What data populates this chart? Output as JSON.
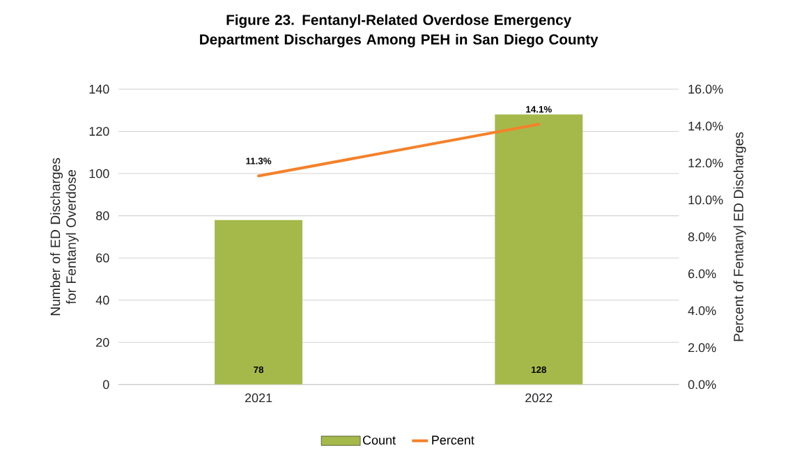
{
  "chart_data": {
    "type": "bar",
    "title": "Figure 23. Fentanyl-Related Overdose Emergency Department Discharges Among PEH in San Diego County",
    "ylabel": "Number of ED Discharges for Fentanyl Overdose",
    "y2label": "Percent of Fentanyl  ED Discharges",
    "categories": [
      "2021",
      "2022"
    ],
    "series": [
      {
        "name": "Count",
        "color": "#a5b94b",
        "values": [
          78,
          128
        ],
        "value_labels": [
          "78",
          "128"
        ]
      },
      {
        "name": "Percent",
        "type": "line",
        "axis": "y2",
        "color": "#f4812a",
        "values": [
          11.3,
          14.1
        ],
        "value_labels": [
          "11.3%",
          "14.1%"
        ]
      }
    ],
    "ylim": [
      0,
      140
    ],
    "yticks": [
      0,
      20,
      40,
      60,
      80,
      100,
      120,
      140
    ],
    "y2lim": [
      0,
      16
    ],
    "y2ticks": [
      {
        "value": 0,
        "label": "0.0%"
      },
      {
        "value": 2,
        "label": "2.0%"
      },
      {
        "value": 4,
        "label": "4.0%"
      },
      {
        "value": 6,
        "label": "6.0%"
      },
      {
        "value": 8,
        "label": "8.0%"
      },
      {
        "value": 10,
        "label": "10.0%"
      },
      {
        "value": 12,
        "label": "12.0%"
      },
      {
        "value": 14,
        "label": "14.0%"
      },
      {
        "value": 16,
        "label": "16.0%"
      }
    ],
    "grid": "y",
    "legend": "bottom"
  }
}
